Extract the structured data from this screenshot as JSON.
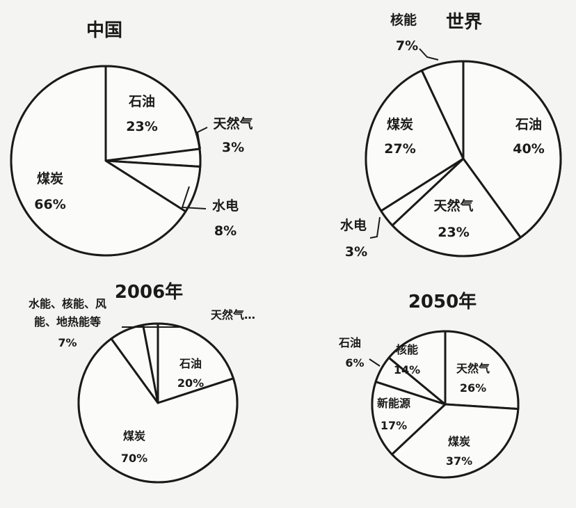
{
  "chart_data": [
    {
      "type": "pie",
      "title": "中国",
      "slices": [
        {
          "label": "石油",
          "value": 23,
          "value_text": "23%"
        },
        {
          "label": "天然气",
          "value": 3,
          "value_text": "3%"
        },
        {
          "label": "水电",
          "value": 8,
          "value_text": "8%"
        },
        {
          "label": "煤炭",
          "value": 66,
          "value_text": "66%"
        }
      ]
    },
    {
      "type": "pie",
      "title": "世界",
      "slices": [
        {
          "label": "石油",
          "value": 40,
          "value_text": "40%"
        },
        {
          "label": "天然气",
          "value": 23,
          "value_text": "23%"
        },
        {
          "label": "水电",
          "value": 3,
          "value_text": "3%"
        },
        {
          "label": "煤炭",
          "value": 27,
          "value_text": "27%"
        },
        {
          "label": "核能",
          "value": 7,
          "value_text": "7%"
        }
      ]
    },
    {
      "type": "pie",
      "title": "2006年",
      "slices": [
        {
          "label": "石油",
          "value": 20,
          "value_text": "20%"
        },
        {
          "label": "煤炭",
          "value": 70,
          "value_text": "70%"
        },
        {
          "label": "水能、核能、风能、地热能等",
          "value": 7,
          "value_text": "7%"
        },
        {
          "label": "天然气…",
          "value": 3,
          "value_text": ""
        }
      ]
    },
    {
      "type": "pie",
      "title": "2050年",
      "slices": [
        {
          "label": "天然气",
          "value": 26,
          "value_text": "26%"
        },
        {
          "label": "煤炭",
          "value": 37,
          "value_text": "37%"
        },
        {
          "label": "新能源",
          "value": 17,
          "value_text": "17%"
        },
        {
          "label": "石油",
          "value": 6,
          "value_text": "6%"
        },
        {
          "label": "核能",
          "value": 14,
          "value_text": "14%"
        }
      ]
    }
  ]
}
